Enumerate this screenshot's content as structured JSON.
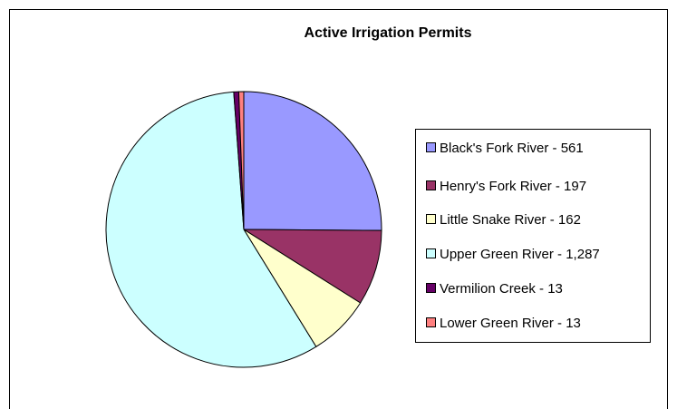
{
  "chart_data": {
    "type": "pie",
    "title": "Active Irrigation Permits",
    "categories": [
      "Black's Fork River - 561",
      "Henry's Fork River - 197",
      "Little Snake River - 162",
      "Upper Green River - 1,287",
      "Vermilion Creek - 13",
      "Lower Green River - 13"
    ],
    "values": [
      561,
      197,
      162,
      1287,
      13,
      13
    ],
    "colors": [
      "#9999ff",
      "#993366",
      "#ffffcc",
      "#ccffff",
      "#660066",
      "#ff8080"
    ],
    "legend": "right"
  }
}
